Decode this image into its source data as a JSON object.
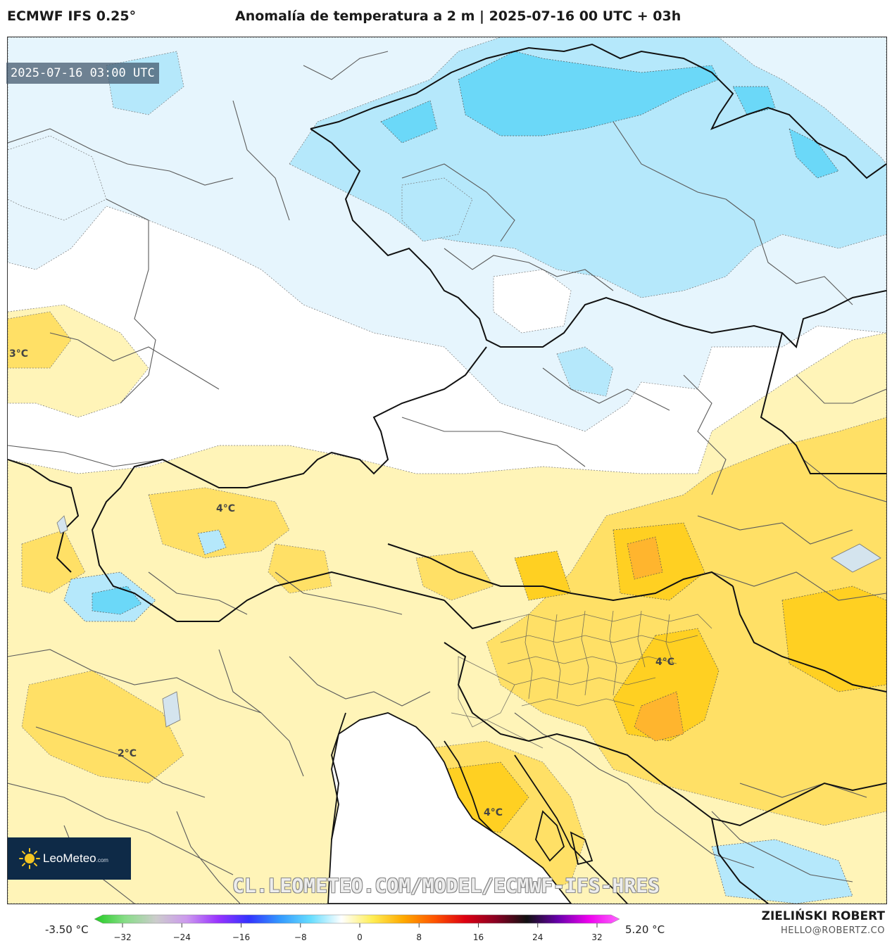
{
  "header": {
    "model": "ECMWF IFS 0.25°",
    "title": "Anomalía de temperatura a 2 m | 2025-07-16 00 UTC + 03h"
  },
  "map": {
    "valid_time": "2025-07-16 03:00 UTC",
    "contour_labels": [
      {
        "text": "3°C",
        "lon_lat_hint": "west edge"
      },
      {
        "text": "4°C",
        "lon_lat_hint": "alps north"
      },
      {
        "text": "4°C",
        "lon_lat_hint": "hungary/croatia"
      },
      {
        "text": "2°C",
        "lon_lat_hint": "northern italy"
      },
      {
        "text": "4°C",
        "lon_lat_hint": "istria"
      }
    ],
    "colors": {
      "cold_light": "#e6f5fd",
      "cold_mid": "#b5e8fb",
      "cold_strong": "#6bd8f8",
      "warm_light": "#fff4b8",
      "warm_mid": "#ffe066",
      "warm_strong": "#ffd022",
      "warm_peak": "#ffb52e",
      "border": "#111111",
      "admin": "#555555"
    }
  },
  "logo": {
    "brand": "LeoMeteo",
    "suffix": ".com"
  },
  "watermark": "CL.LEOMETEO.COM/MODEL/ECMWF-IFS-HRES",
  "colorbar": {
    "min_label": "-3.50 °C",
    "max_label": "5.20 °C",
    "ticks": [
      "−32",
      "−24",
      "−16",
      "−8",
      "0",
      "8",
      "16",
      "24",
      "32"
    ],
    "stops": [
      "#22cc22",
      "#88dd88",
      "#cccccc",
      "#cc99ee",
      "#9933ff",
      "#3333ff",
      "#3399ff",
      "#66ddff",
      "#ffffff",
      "#ffee55",
      "#ffaa00",
      "#ff5500",
      "#dd0011",
      "#880022",
      "#111111",
      "#6600aa",
      "#ee00ee",
      "#ff66ff"
    ]
  },
  "credits": {
    "author": "ZIELIŃSKI ROBERT",
    "email": "HELLO@ROBERTZ.CO"
  }
}
